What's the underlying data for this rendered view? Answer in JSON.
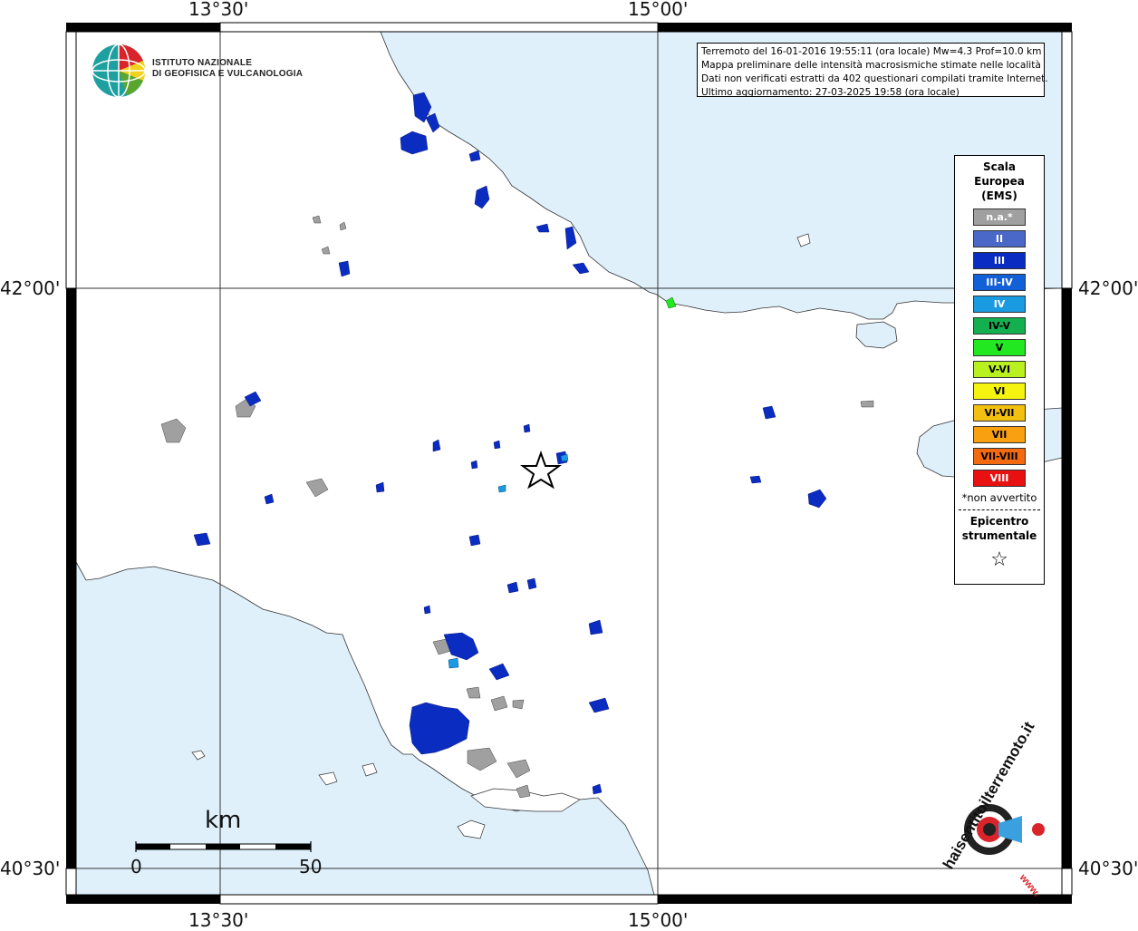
{
  "coordinates": {
    "top_lon_left": "13°30'",
    "top_lon_right": "15°00'",
    "bottom_lon_left": "13°30'",
    "bottom_lon_right": "15°00'",
    "left_lat_upper": "42°00'",
    "left_lat_lower": "40°30'",
    "right_lat_upper": "42°00'",
    "right_lat_lower": "40°30'"
  },
  "info": {
    "line1": "Terremoto del 16-01-2016 19:55:11 (ora locale) Mw=4.3 Prof=10.0 km",
    "line2": "Mappa preliminare delle intensità macrosismiche stimate nelle località",
    "line3": "Dati non verificati estratti da 402 questionari compilati tramite Internet.",
    "line4": "Ultimo aggiornamento: 27-03-2025 19:58 (ora locale)"
  },
  "ingv": {
    "line1": "ISTITUTO NAZIONALE",
    "line2": "DI GEOFISICA E VULCANOLOGIA"
  },
  "legend": {
    "title_line1": "Scala",
    "title_line2": "Europea",
    "title_line3": "(EMS)",
    "items": [
      {
        "label": "n.a.*",
        "color": "#a0a0a0",
        "text_color": "#ffffff"
      },
      {
        "label": "II",
        "color": "#4a68c8",
        "text_color": "#ffffff"
      },
      {
        "label": "III",
        "color": "#0a2cc0",
        "text_color": "#ffffff"
      },
      {
        "label": "III-IV",
        "color": "#1260d8",
        "text_color": "#ffffff"
      },
      {
        "label": "IV",
        "color": "#1a9ae0",
        "text_color": "#ffffff"
      },
      {
        "label": "IV-V",
        "color": "#14b050",
        "text_color": "#000000"
      },
      {
        "label": "V",
        "color": "#22e822",
        "text_color": "#000000"
      },
      {
        "label": "V-VI",
        "color": "#b8f020",
        "text_color": "#000000"
      },
      {
        "label": "VI",
        "color": "#f4f410",
        "text_color": "#000000"
      },
      {
        "label": "VI-VII",
        "color": "#f4c010",
        "text_color": "#000000"
      },
      {
        "label": "VII",
        "color": "#f8a010",
        "text_color": "#000000"
      },
      {
        "label": "VII-VIII",
        "color": "#f46a10",
        "text_color": "#000000"
      },
      {
        "label": "VIII",
        "color": "#e81010",
        "text_color": "#ffffff"
      }
    ],
    "note": "*non avvertito",
    "epicenter_line1": "Epicentro",
    "epicenter_line2": "strumentale",
    "star": "☆"
  },
  "scale_bar": {
    "unit": "km",
    "start": "0",
    "end": "50"
  },
  "hst_logo": {
    "text": "haisentitoilterremoto.it",
    "url_text": "www."
  },
  "colors": {
    "sea": "#dff0fb",
    "land": "#ffffff",
    "intensity_III": "#0a2cc0",
    "not_felt": "#a0a0a0"
  }
}
